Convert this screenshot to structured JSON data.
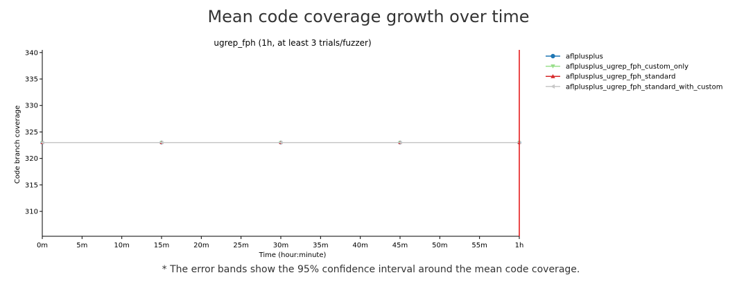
{
  "page": {
    "title": "Mean code coverage growth over time",
    "footnote": "* The error bands show the 95% confidence interval around the mean code coverage."
  },
  "chart_data": {
    "type": "line",
    "subtitle": "ugrep_fph (1h, at least 3 trials/fuzzer)",
    "xlabel": "Time (hour:minute)",
    "ylabel": "Code branch coverage",
    "x_ticks": [
      "0m",
      "5m",
      "10m",
      "15m",
      "20m",
      "25m",
      "30m",
      "35m",
      "40m",
      "45m",
      "50m",
      "55m",
      "1h"
    ],
    "x_tick_minutes": [
      0,
      5,
      10,
      15,
      20,
      25,
      30,
      35,
      40,
      45,
      50,
      55,
      60
    ],
    "y_ticks": [
      310,
      315,
      320,
      325,
      330,
      335,
      340
    ],
    "xlim": [
      0,
      60
    ],
    "ylim": [
      305.3,
      340.5
    ],
    "grid": false,
    "legend_position": "outside-right",
    "series": [
      {
        "name": "aflplusplus",
        "color": "#1f77b4",
        "marker": "circle",
        "x": [
          0,
          15,
          30,
          45,
          60
        ],
        "y": [
          323,
          323,
          323,
          323,
          323
        ]
      },
      {
        "name": "aflplusplus_ugrep_fph_custom_only",
        "color": "#98df8a",
        "marker": "triangle-down",
        "x": [
          0,
          15,
          30,
          45,
          60
        ],
        "y": [
          323,
          323,
          323,
          323,
          323
        ]
      },
      {
        "name": "aflplusplus_ugrep_fph_standard",
        "color": "#d62728",
        "marker": "triangle-up",
        "x": [
          0,
          15,
          30,
          45,
          60
        ],
        "y": [
          323,
          323,
          323,
          323,
          323
        ]
      },
      {
        "name": "aflplusplus_ugrep_fph_standard_with_custom",
        "color": "#c7c7c7",
        "marker": "triangle-left",
        "x": [
          0,
          15,
          30,
          45,
          60
        ],
        "y": [
          323,
          323,
          323,
          323,
          323
        ]
      }
    ],
    "vertical_marker": {
      "x": 60,
      "color": "#e41a1c"
    }
  }
}
